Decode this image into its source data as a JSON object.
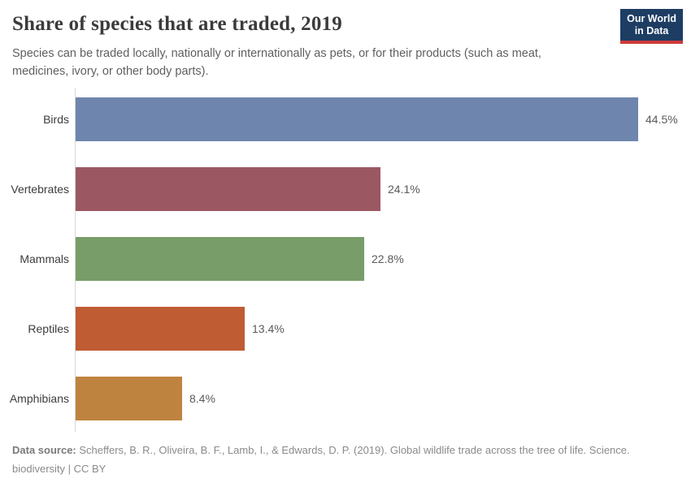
{
  "header": {
    "title": "Share of species that are traded, 2019",
    "subtitle": "Species can be traded locally, nationally or internationally as pets, or for their products (such as meat, medicines, ivory, or other body parts).",
    "logo": {
      "line1": "Our World",
      "line2": "in Data",
      "bg_color": "#1d3d63",
      "accent_color": "#cc3b3b"
    }
  },
  "chart_data": {
    "type": "bar",
    "orientation": "horizontal",
    "title": "Share of species that are traded, 2019",
    "xlabel": "",
    "ylabel": "",
    "xlim": [
      0,
      46
    ],
    "grid": false,
    "legend": "none",
    "unit": "%",
    "categories": [
      "Birds",
      "Vertebrates",
      "Mammals",
      "Reptiles",
      "Amphibians"
    ],
    "values": [
      44.5,
      24.1,
      22.8,
      13.4,
      8.4
    ],
    "value_labels": [
      "44.5%",
      "24.1%",
      "22.8%",
      "13.4%",
      "8.4%"
    ],
    "bar_colors": [
      "#6e85ad",
      "#9c5862",
      "#789d68",
      "#bf5c33",
      "#bf8340"
    ]
  },
  "footer": {
    "source_label": "Data source:",
    "source_text": "Scheffers, B. R., Oliveira, B. F., Lamb, I., & Edwards, D. P. (2019). Global wildlife trade across the tree of life. Science.",
    "line2": "biodiversity | CC BY"
  }
}
